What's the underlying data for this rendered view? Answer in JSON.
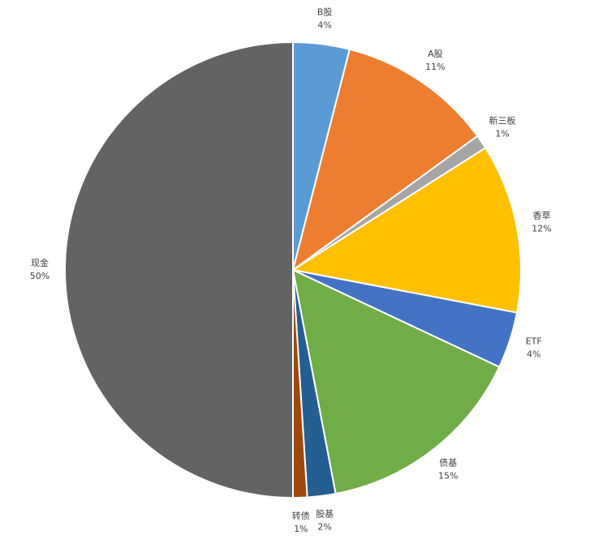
{
  "chart_data": {
    "type": "pie",
    "categories": [
      "B股",
      "A股",
      "新三板",
      "香草",
      "ETF",
      "债基",
      "股基",
      "转债",
      "现金"
    ],
    "values": [
      4,
      11,
      1,
      12,
      4,
      15,
      2,
      1,
      50
    ],
    "value_labels": [
      "4%",
      "11%",
      "1%",
      "12%",
      "4%",
      "15%",
      "2%",
      "1%",
      "50%"
    ],
    "colors": [
      "#5b9bd5",
      "#ed7d31",
      "#a5a5a5",
      "#ffc000",
      "#4472c4",
      "#70ad47",
      "#255e91",
      "#9e480e",
      "#636363"
    ]
  }
}
